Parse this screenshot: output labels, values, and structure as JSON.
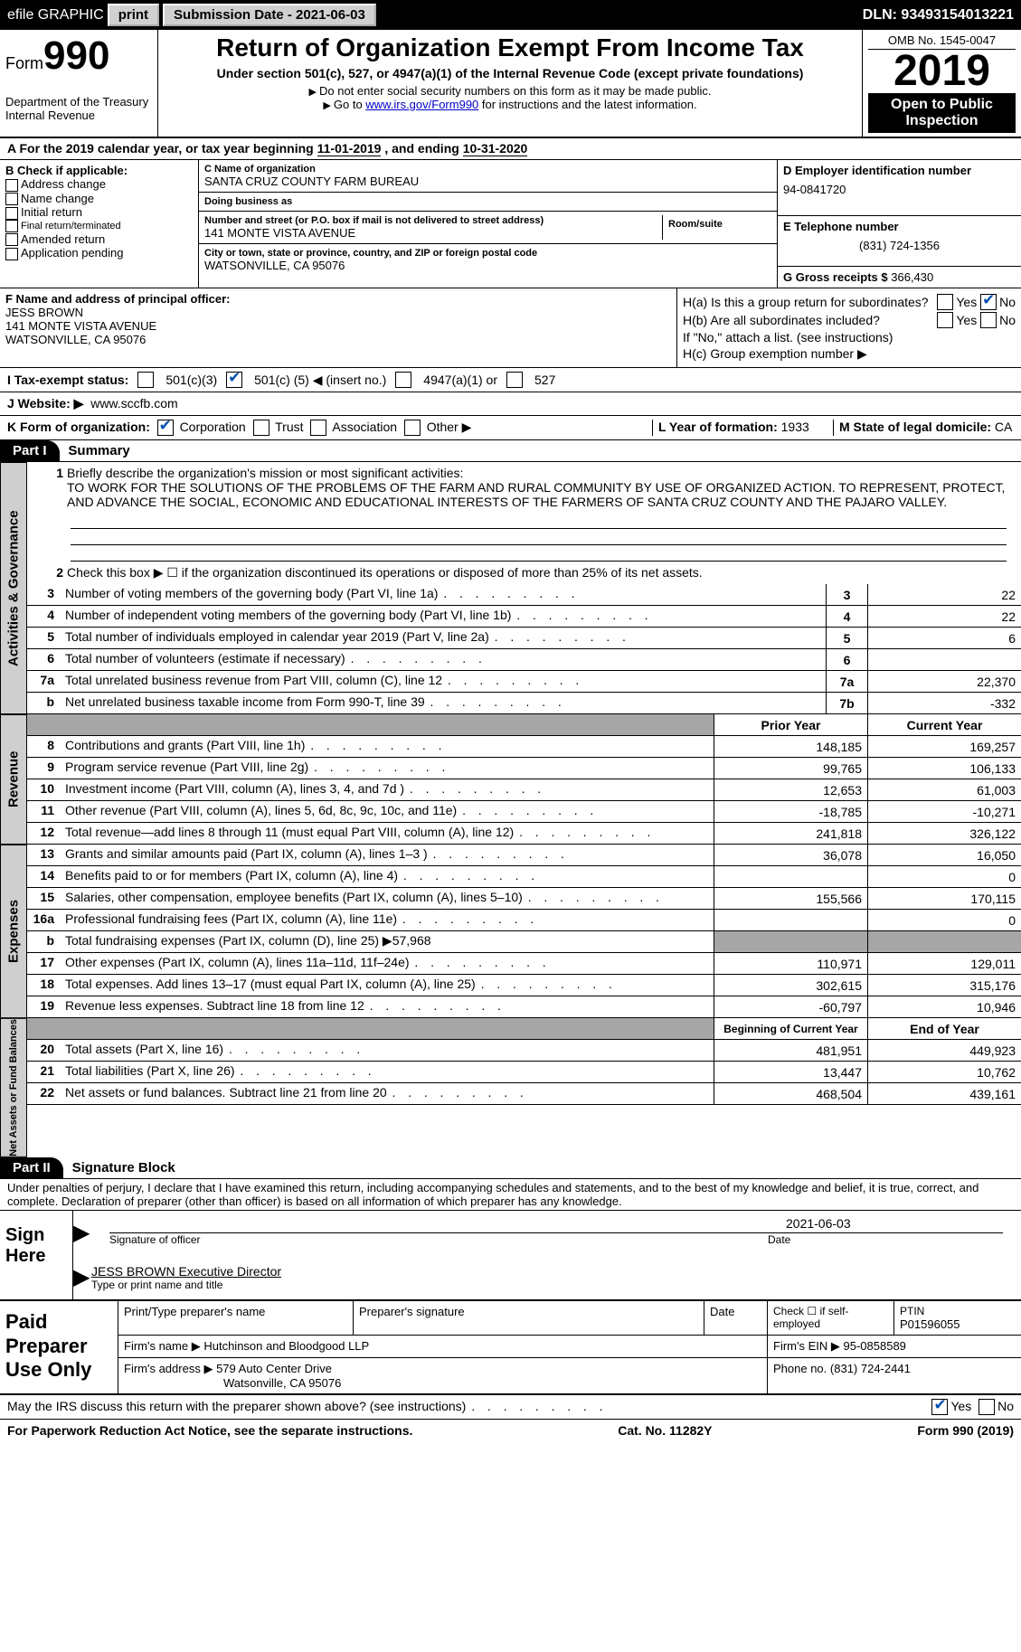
{
  "colors": {
    "black": "#000000",
    "white": "#ffffff",
    "grey_btn": "#d0d0d0",
    "grey_cell": "#a6a6a6",
    "side_tab": "#cfcfcf",
    "link": "#0000cc",
    "check_blue": "#0050b0"
  },
  "top_bar": {
    "efile_label": "efile GRAPHIC",
    "print_btn": "print",
    "submission": "Submission Date - 2021-06-03",
    "dln": "DLN: 93493154013221"
  },
  "header": {
    "form_label": "Form",
    "form_number": "990",
    "dept": "Department of the Treasury",
    "irs": "Internal Revenue",
    "title": "Return of Organization Exempt From Income Tax",
    "subtitle": "Under section 501(c), 527, or 4947(a)(1) of the Internal Revenue Code (except private foundations)",
    "note1": "Do not enter social security numbers on this form as it may be made public.",
    "note2_pre": "Go to ",
    "note2_link": "www.irs.gov/Form990",
    "note2_post": " for instructions and the latest information.",
    "omb": "OMB No. 1545-0047",
    "year": "2019",
    "open_public": "Open to Public Inspection"
  },
  "period": {
    "text_pre": "A For the 2019 calendar year, or tax year beginning ",
    "begin": "11-01-2019",
    "mid": "  , and ending ",
    "end": "10-31-2020"
  },
  "section_b": {
    "check_label": "B Check if applicable:",
    "options": [
      "Address change",
      "Name change",
      "Initial return",
      "Final return/terminated",
      "Amended return",
      "Application pending"
    ],
    "c_name_lbl": "C Name of organization",
    "c_name": "SANTA CRUZ COUNTY FARM BUREAU",
    "dba_lbl": "Doing business as",
    "dba": "",
    "street_lbl": "Number and street (or P.O. box if mail is not delivered to street address)",
    "street": "141 MONTE VISTA AVENUE",
    "room_lbl": "Room/suite",
    "city_lbl": "City or town, state or province, country, and ZIP or foreign postal code",
    "city": "WATSONVILLE, CA  95076",
    "d_ein_lbl": "D Employer identification number",
    "d_ein": "94-0841720",
    "e_tel_lbl": "E Telephone number",
    "e_tel": "(831) 724-1356",
    "g_gross_lbl": "G Gross receipts $",
    "g_gross": "366,430"
  },
  "officer": {
    "f_lbl": "F Name and address of principal officer:",
    "name": "JESS BROWN",
    "addr1": "141 MONTE VISTA AVENUE",
    "addr2": "WATSONVILLE, CA  95076",
    "ha": "H(a)  Is this a group return for subordinates?",
    "ha_yes": "Yes",
    "ha_no": "No",
    "ha_checked": "No",
    "hb": "H(b)  Are all subordinates included?",
    "hb_yes": "Yes",
    "hb_no": "No",
    "hb_note": "If \"No,\" attach a list. (see instructions)",
    "hc": "H(c)  Group exemption number ▶"
  },
  "status": {
    "i_lbl": "I   Tax-exempt status:",
    "opt1": "501(c)(3)",
    "opt2_pre": "501(c) (",
    "opt2_val": "5",
    "opt2_post": ") ◀ (insert no.)",
    "opt3": "4947(a)(1) or",
    "opt4": "527",
    "checked": "501c5"
  },
  "website": {
    "j_lbl": "J   Website: ▶",
    "val": "www.sccfb.com"
  },
  "lyr": {
    "k_lbl": "K Form of organization:",
    "opts": [
      "Corporation",
      "Trust",
      "Association",
      "Other ▶"
    ],
    "checked": "Corporation",
    "l_lbl": "L Year of formation:",
    "l_val": "1933",
    "m_lbl": "M State of legal domicile:",
    "m_val": "CA"
  },
  "part1": {
    "hdr": "Part I",
    "title": "Summary",
    "q1_num": "1",
    "q1": "Briefly describe the organization's mission or most significant activities:",
    "mission": "TO WORK FOR THE SOLUTIONS OF THE PROBLEMS OF THE FARM AND RURAL COMMUNITY BY USE OF ORGANIZED ACTION. TO REPRESENT, PROTECT, AND ADVANCE THE SOCIAL, ECONOMIC AND EDUCATIONAL INTERESTS OF THE FARMERS OF SANTA CRUZ COUNTY AND THE PAJARO VALLEY.",
    "q2_num": "2",
    "q2": "Check this box ▶ ☐  if the organization discontinued its operations or disposed of more than 25% of its net assets.",
    "lines": [
      {
        "n": "3",
        "label": "Number of voting members of the governing body (Part VI, line 1a)",
        "box": "3",
        "val": "22"
      },
      {
        "n": "4",
        "label": "Number of independent voting members of the governing body (Part VI, line 1b)",
        "box": "4",
        "val": "22"
      },
      {
        "n": "5",
        "label": "Total number of individuals employed in calendar year 2019 (Part V, line 2a)",
        "box": "5",
        "val": "6"
      },
      {
        "n": "6",
        "label": "Total number of volunteers (estimate if necessary)",
        "box": "6",
        "val": ""
      },
      {
        "n": "7a",
        "label": "Total unrelated business revenue from Part VIII, column (C), line 12",
        "box": "7a",
        "val": "22,370"
      },
      {
        "n": "b",
        "label": "Net unrelated business taxable income from Form 990-T, line 39",
        "box": "7b",
        "val": "-332"
      }
    ]
  },
  "revenue": {
    "hdr_prior": "Prior Year",
    "hdr_curr": "Current Year",
    "rows": [
      {
        "n": "8",
        "label": "Contributions and grants (Part VIII, line 1h)",
        "prior": "148,185",
        "curr": "169,257"
      },
      {
        "n": "9",
        "label": "Program service revenue (Part VIII, line 2g)",
        "prior": "99,765",
        "curr": "106,133"
      },
      {
        "n": "10",
        "label": "Investment income (Part VIII, column (A), lines 3, 4, and 7d )",
        "prior": "12,653",
        "curr": "61,003"
      },
      {
        "n": "11",
        "label": "Other revenue (Part VIII, column (A), lines 5, 6d, 8c, 9c, 10c, and 11e)",
        "prior": "-18,785",
        "curr": "-10,271"
      },
      {
        "n": "12",
        "label": "Total revenue—add lines 8 through 11 (must equal Part VIII, column (A), line 12)",
        "prior": "241,818",
        "curr": "326,122"
      }
    ]
  },
  "expenses": {
    "rows": [
      {
        "n": "13",
        "label": "Grants and similar amounts paid (Part IX, column (A), lines 1–3 )",
        "prior": "36,078",
        "curr": "16,050"
      },
      {
        "n": "14",
        "label": "Benefits paid to or for members (Part IX, column (A), line 4)",
        "prior": "",
        "curr": "0"
      },
      {
        "n": "15",
        "label": "Salaries, other compensation, employee benefits (Part IX, column (A), lines 5–10)",
        "prior": "155,566",
        "curr": "170,115"
      },
      {
        "n": "16a",
        "label": "Professional fundraising fees (Part IX, column (A), line 11e)",
        "prior": "",
        "curr": "0"
      },
      {
        "n": "b",
        "label": "Total fundraising expenses (Part IX, column (D), line 25) ▶57,968",
        "prior": "GREY",
        "curr": "GREY"
      },
      {
        "n": "17",
        "label": "Other expenses (Part IX, column (A), lines 11a–11d, 11f–24e)",
        "prior": "110,971",
        "curr": "129,011"
      },
      {
        "n": "18",
        "label": "Total expenses. Add lines 13–17 (must equal Part IX, column (A), line 25)",
        "prior": "302,615",
        "curr": "315,176"
      },
      {
        "n": "19",
        "label": "Revenue less expenses. Subtract line 18 from line 12",
        "prior": "-60,797",
        "curr": "10,946"
      }
    ]
  },
  "netassets": {
    "hdr_begin": "Beginning of Current Year",
    "hdr_end": "End of Year",
    "rows": [
      {
        "n": "20",
        "label": "Total assets (Part X, line 16)",
        "begin": "481,951",
        "end": "449,923"
      },
      {
        "n": "21",
        "label": "Total liabilities (Part X, line 26)",
        "begin": "13,447",
        "end": "10,762"
      },
      {
        "n": "22",
        "label": "Net assets or fund balances. Subtract line 21 from line 20",
        "begin": "468,504",
        "end": "439,161"
      }
    ]
  },
  "side_tabs": {
    "gov": "Activities & Governance",
    "rev": "Revenue",
    "exp": "Expenses",
    "net": "Net Assets or Fund Balances"
  },
  "part2": {
    "hdr": "Part II",
    "title": "Signature Block",
    "decl": "Under penalties of perjury, I declare that I have examined this return, including accompanying schedules and statements, and to the best of my knowledge and belief, it is true, correct, and complete. Declaration of preparer (other than officer) is based on all information of which preparer has any knowledge.",
    "sign_here": "Sign Here",
    "sig_officer": "Signature of officer",
    "sig_date": "Date",
    "sig_date_val": "2021-06-03",
    "officer_name": "JESS BROWN  Executive Director",
    "type_name": "Type or print name and title"
  },
  "preparer": {
    "title": "Paid Preparer Use Only",
    "r1": {
      "c1": "Print/Type preparer's name",
      "c2": "Preparer's signature",
      "c3": "Date",
      "c4_lbl": "Check ☐ if self-employed",
      "c5_lbl": "PTIN",
      "c5": "P01596055"
    },
    "r2": {
      "lbl": "Firm's name    ▶",
      "val": "Hutchinson and Bloodgood LLP",
      "ein_lbl": "Firm's EIN ▶",
      "ein": "95-0858589"
    },
    "r3": {
      "lbl": "Firm's address ▶",
      "val1": "579 Auto Center Drive",
      "val2": "Watsonville, CA  95076",
      "ph_lbl": "Phone no.",
      "ph": "(831) 724-2441"
    }
  },
  "footer": {
    "discuss": "May the IRS discuss this return with the preparer shown above? (see instructions)",
    "yes": "Yes",
    "no": "No",
    "checked": "Yes",
    "pra": "For Paperwork Reduction Act Notice, see the separate instructions.",
    "cat": "Cat. No. 11282Y",
    "form": "Form 990 (2019)"
  }
}
